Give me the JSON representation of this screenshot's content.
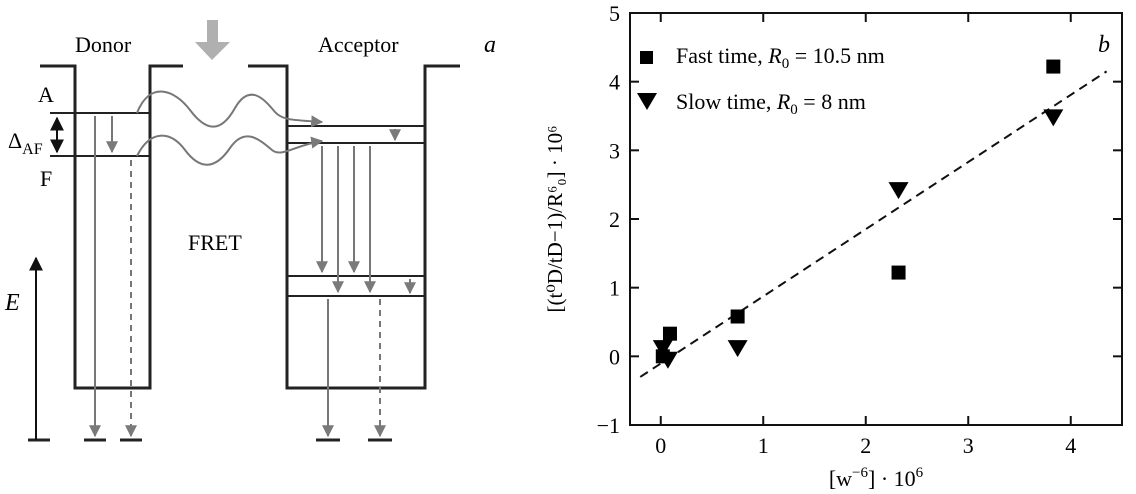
{
  "panel_a": {
    "panel_letter": "a",
    "donor_label": "Donor",
    "acceptor_label": "Acceptor",
    "level_a_label": "A",
    "level_f_label": "F",
    "gap_label_main": "Δ",
    "gap_label_sub": "AF",
    "transfer_label": "FRET",
    "energy_axis_label": "E",
    "colors": {
      "arrow": "#7a7a7a",
      "incident_arrow": "#b0b0b0",
      "wells": "#222222"
    }
  },
  "chart_data": {
    "type": "scatter",
    "panel_letter": "b",
    "xlabel_main": "[w",
    "xlabel_exp": "−6",
    "xlabel_suffix": "] · 10",
    "xlabel_exp2": "6",
    "ylabel_text": "[(t⁰D/tD−1)/R⁶₀] · 10⁶",
    "xlim": [
      -0.3,
      4.5
    ],
    "ylim": [
      -1,
      5
    ],
    "xticks": [
      0,
      1,
      2,
      3,
      4
    ],
    "yticks": [
      -1,
      0,
      1,
      2,
      3,
      4,
      5
    ],
    "xtick_labels": [
      "0",
      "1",
      "2",
      "3",
      "4"
    ],
    "ytick_labels": [
      "−1",
      "0",
      "1",
      "2",
      "3",
      "4",
      "5"
    ],
    "grid": false,
    "legend_position": "top-left",
    "series": [
      {
        "name": "Fast time, R₀ = 10.5 nm",
        "legend_text": "Fast time, ",
        "legend_var": "R",
        "legend_sub": "0",
        "legend_value": " = 10.5 nm",
        "marker": "square",
        "x": [
          0.02,
          0.09,
          0.75,
          2.32,
          3.83
        ],
        "y": [
          0.0,
          0.33,
          0.58,
          1.22,
          4.22
        ]
      },
      {
        "name": "Slow time, R₀ = 8 nm",
        "legend_text": "Slow time, ",
        "legend_var": "R",
        "legend_sub": "0",
        "legend_value": " = 8 nm",
        "marker": "triangle-down",
        "x": [
          0.02,
          0.07,
          0.75,
          2.32,
          3.83
        ],
        "y": [
          0.12,
          -0.05,
          0.12,
          2.42,
          3.48
        ]
      }
    ],
    "fit_line": {
      "style": "dashed",
      "x": [
        -0.2,
        4.35
      ],
      "y": [
        -0.3,
        4.15
      ]
    }
  }
}
